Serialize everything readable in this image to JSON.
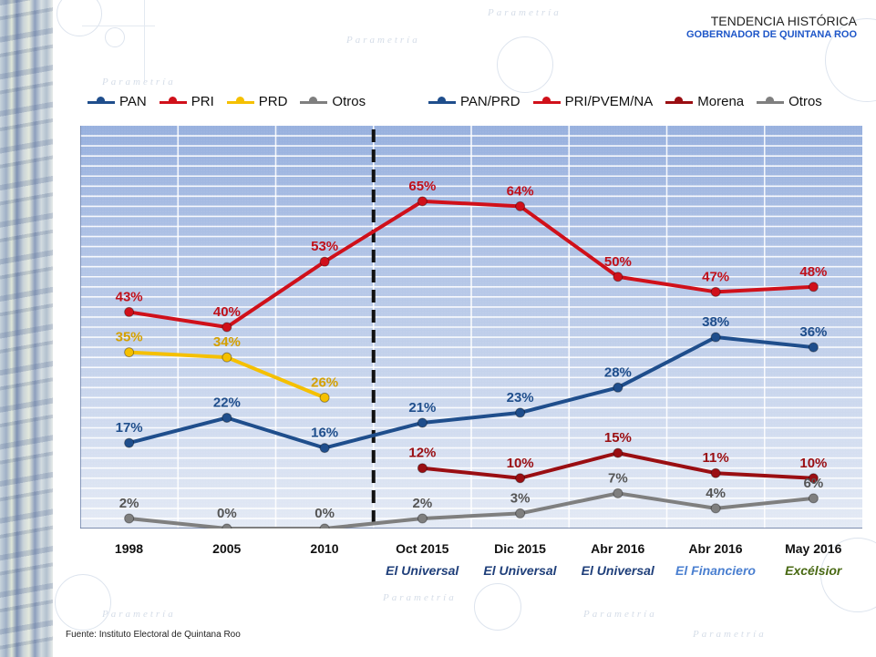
{
  "header": {
    "title": "TENDENCIA HISTÓRICA",
    "subtitle": "GOBERNADOR DE QUINTANA ROO"
  },
  "watermark": "Parametría",
  "legend_left": [
    {
      "label": "PAN",
      "color": "#1f4e8c"
    },
    {
      "label": "PRI",
      "color": "#d0101a"
    },
    {
      "label": "PRD",
      "color": "#f5c000"
    },
    {
      "label": "Otros",
      "color": "#7f7f7f"
    }
  ],
  "legend_right": [
    {
      "label": "PAN/PRD",
      "color": "#1f4e8c"
    },
    {
      "label": "PRI/PVEM/NA",
      "color": "#d0101a"
    },
    {
      "label": "Morena",
      "color": "#9a0e12"
    },
    {
      "label": "Otros",
      "color": "#7f7f7f"
    }
  ],
  "source": "Fuente: Instituto Electoral de Quintana Roo",
  "chart_data": {
    "type": "line",
    "title": "TENDENCIA HISTÓRICA",
    "subtitle": "GOBERNADOR DE QUINTANA ROO",
    "xlabel": "",
    "ylabel": "",
    "ylim": [
      0,
      80
    ],
    "grid": true,
    "legend_position": "top",
    "categories": [
      "1998",
      "2005",
      "2010",
      "Oct 2015",
      "Dic 2015",
      "Abr 2016",
      "Abr 2016",
      "May 2016"
    ],
    "category_sources": [
      "",
      "",
      "",
      "El Universal",
      "El Universal",
      "El Universal",
      "El Financiero",
      "Excélsior"
    ],
    "source_colors": [
      "",
      "",
      "",
      "#1f3f7a",
      "#1f3f7a",
      "#1f3f7a",
      "#4a7fd0",
      "#4a6a14"
    ],
    "separator_after_index": 2,
    "series": [
      {
        "name": "PAN",
        "color": "#1f4e8c",
        "label_color": "#1f4e8c",
        "values": [
          17,
          22,
          16,
          null,
          null,
          null,
          null,
          null
        ]
      },
      {
        "name": "PRI",
        "color": "#d0101a",
        "label_color": "#c0101a",
        "values": [
          43,
          40,
          53,
          null,
          null,
          null,
          null,
          null
        ]
      },
      {
        "name": "PRD",
        "color": "#f5c000",
        "label_color": "#d4a000",
        "values": [
          35,
          34,
          26,
          null,
          null,
          null,
          null,
          null
        ]
      },
      {
        "name": "Otros",
        "color": "#7f7f7f",
        "label_color": "#555555",
        "values": [
          2,
          0,
          0,
          null,
          null,
          null,
          null,
          null
        ]
      },
      {
        "name": "PAN/PRD",
        "color": "#1f4e8c",
        "label_color": "#1f4e8c",
        "values": [
          null,
          null,
          null,
          21,
          23,
          28,
          38,
          36
        ]
      },
      {
        "name": "PRI/PVEM/NA",
        "color": "#d0101a",
        "label_color": "#c0101a",
        "values": [
          null,
          null,
          null,
          65,
          64,
          50,
          47,
          48
        ]
      },
      {
        "name": "Morena",
        "color": "#9a0e12",
        "label_color": "#9a0e12",
        "values": [
          null,
          null,
          null,
          12,
          10,
          15,
          11,
          10
        ]
      },
      {
        "name": "Otros",
        "color": "#7f7f7f",
        "label_color": "#555555",
        "values": [
          null,
          null,
          null,
          2,
          3,
          7,
          4,
          6
        ]
      }
    ],
    "bridges": [
      {
        "series_from": 0,
        "series_to": 4,
        "from_index": 2,
        "to_index": 3
      },
      {
        "series_from": 1,
        "series_to": 5,
        "from_index": 2,
        "to_index": 3
      },
      {
        "series_from": 3,
        "series_to": 7,
        "from_index": 2,
        "to_index": 3
      }
    ]
  }
}
